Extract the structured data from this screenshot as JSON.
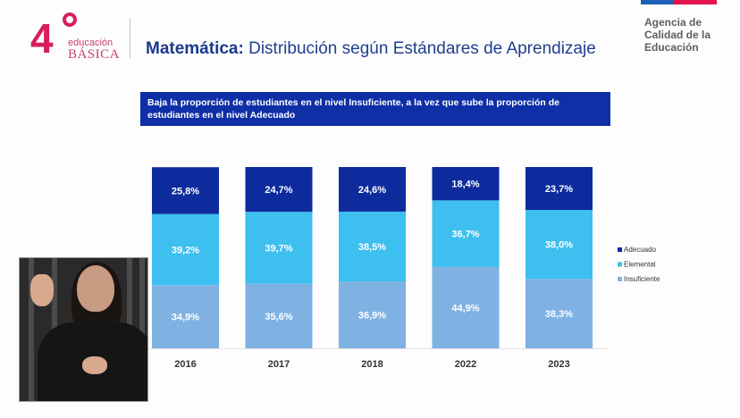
{
  "header": {
    "logo": {
      "number": "4",
      "line1": "educación",
      "line2": "BÁSICA"
    },
    "title_bold": "Matemática:",
    "title_rest": " Distribución según Estándares de Aprendizaje",
    "agency": [
      "Agencia de",
      "Calidad de la",
      "Educación"
    ]
  },
  "banner": {
    "text": "Baja la proporción de estudiantes en el nivel Insuficiente, a la vez que sube la proporción de estudiantes en el nivel Adecuado"
  },
  "colors": {
    "adecuado": "#0d2b9c",
    "elemental": "#3dbfef",
    "insuficiente": "#7fb2e3",
    "brand_pink": "#d81e5b",
    "brand_blue": "#1d5fb4",
    "brand_red": "#e4134f"
  },
  "video_overlay": {
    "description": "sign-language-interpreter"
  },
  "chart_data": {
    "type": "bar",
    "stacked": true,
    "normalized": true,
    "title": "",
    "xlabel": "",
    "ylabel": "",
    "ylim": [
      0,
      100
    ],
    "categories": [
      "2016",
      "2017",
      "2018",
      "2022",
      "2023"
    ],
    "series": [
      {
        "name": "Insuficiente",
        "color": "#7fb2e3",
        "values": [
          34.9,
          35.6,
          36.9,
          44.9,
          38.3
        ],
        "labels": [
          "34,9%",
          "35,6%",
          "36,9%",
          "44,9%",
          "38,3%"
        ]
      },
      {
        "name": "Elemental",
        "color": "#3dbfef",
        "values": [
          39.2,
          39.7,
          38.5,
          36.7,
          38.0
        ],
        "labels": [
          "39,2%",
          "39,7%",
          "38,5%",
          "36,7%",
          "38,0%"
        ]
      },
      {
        "name": "Adecuado",
        "color": "#0d2b9c",
        "values": [
          25.8,
          24.7,
          24.6,
          18.4,
          23.7
        ],
        "labels": [
          "25,8%",
          "24,7%",
          "24,6%",
          "18,4%",
          "23,7%"
        ]
      }
    ],
    "legend": {
      "position": "right",
      "order": [
        "Adecuado",
        "Elemental",
        "Insuficiente"
      ]
    },
    "grid": false
  }
}
